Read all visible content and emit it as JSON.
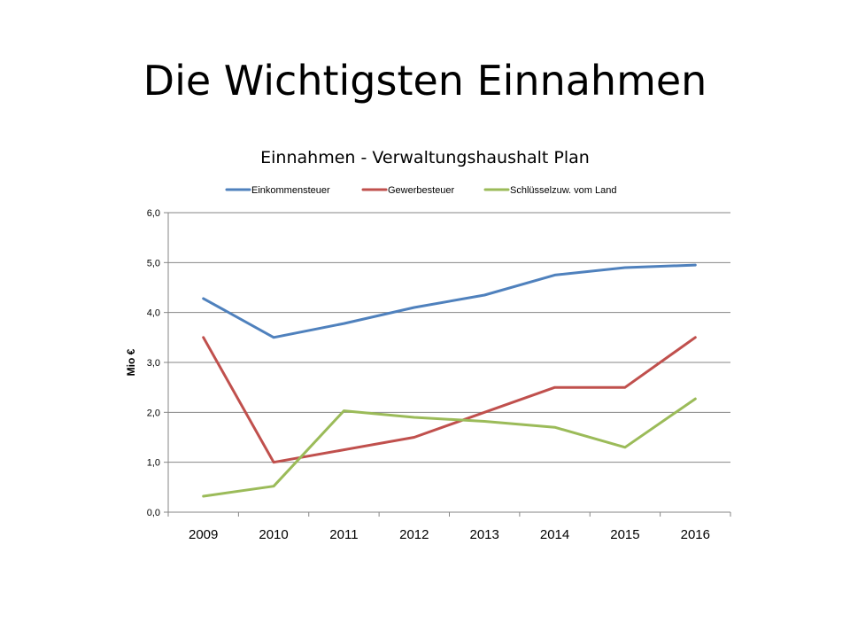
{
  "slide": {
    "title": "Die Wichtigsten Einnahmen"
  },
  "chart_data": {
    "type": "line",
    "title": "Einnahmen - Verwaltungshaushalt Plan",
    "xlabel": "",
    "ylabel": "Mio €",
    "categories": [
      "2009",
      "2010",
      "2011",
      "2012",
      "2013",
      "2014",
      "2015",
      "2016"
    ],
    "ylim": [
      0,
      6
    ],
    "yticks": [
      "0,0",
      "1,0",
      "2,0",
      "3,0",
      "4,0",
      "5,0",
      "6,0"
    ],
    "grid": true,
    "legend": "top",
    "series": [
      {
        "name": "Einkommensteuer",
        "color": "#4f81bd",
        "values": [
          4.28,
          3.5,
          3.78,
          4.1,
          4.35,
          4.75,
          4.9,
          4.95
        ]
      },
      {
        "name": "Gewerbesteuer",
        "color": "#c0504d",
        "values": [
          3.5,
          1.0,
          1.25,
          1.5,
          2.0,
          2.5,
          2.5,
          3.5
        ]
      },
      {
        "name": "Schlüsselzuw. vom Land",
        "color": "#9bbb59",
        "values": [
          0.32,
          0.52,
          2.03,
          1.9,
          1.82,
          1.7,
          1.3,
          2.27
        ]
      }
    ]
  }
}
